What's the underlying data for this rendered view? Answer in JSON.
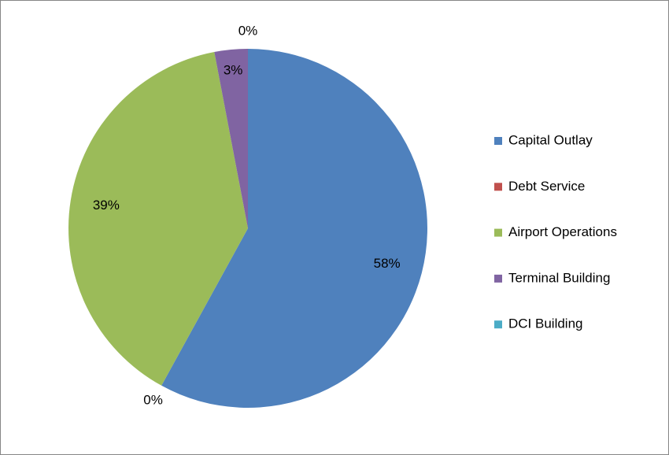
{
  "chart_data": {
    "type": "pie",
    "categories": [
      "Capital Outlay",
      "Debt Service",
      "Airport Operations",
      "Terminal Building",
      "DCI Building"
    ],
    "values": [
      58,
      0,
      39,
      3,
      0
    ],
    "value_labels": [
      "58%",
      "0%",
      "39%",
      "3%",
      "0%"
    ],
    "colors": [
      "#4f81bd",
      "#c0504d",
      "#9bbb59",
      "#8064a2",
      "#4bacc6"
    ],
    "legend": "right"
  }
}
